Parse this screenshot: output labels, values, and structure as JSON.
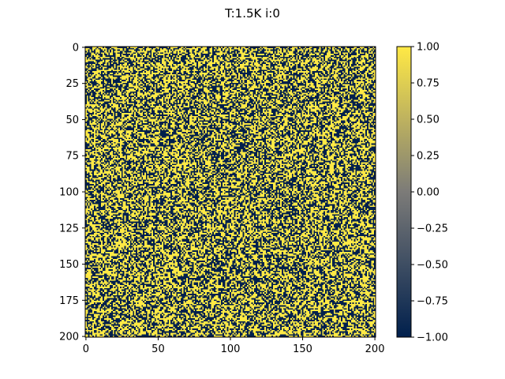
{
  "chart_data": [
    {
      "type": "heatmap",
      "title": "T:1.5K   i:0",
      "xlabel": "",
      "ylabel": "",
      "grid_size": 201,
      "xlim": [
        0,
        201
      ],
      "ylim": [
        201,
        0
      ],
      "xticks": [
        0,
        50,
        100,
        150,
        200
      ],
      "yticks": [
        0,
        25,
        50,
        75,
        100,
        125,
        150,
        175,
        200
      ],
      "xtick_labels": [
        "0",
        "50",
        "100",
        "150",
        "200"
      ],
      "ytick_labels": [
        "0",
        "25",
        "50",
        "75",
        "100",
        "125",
        "150",
        "175",
        "200"
      ],
      "values_domain": [
        -1,
        1
      ],
      "values_description": "random spins of -1 or +1, roughly equal proportion (initial state)",
      "spin_up_fraction": 0.5,
      "colormap": "cividis",
      "colormap_colors": [
        "#00204d",
        "#7c7b78",
        "#ffe945"
      ]
    },
    {
      "type": "colorbar",
      "range": [
        -1,
        1
      ],
      "ticks": [
        1.0,
        0.75,
        0.5,
        0.25,
        0.0,
        -0.25,
        -0.5,
        -0.75,
        -1.0
      ],
      "tick_labels": [
        "1.00",
        "0.75",
        "0.50",
        "0.25",
        "0.00",
        "−0.25",
        "−0.50",
        "−0.75",
        "−1.00"
      ]
    }
  ]
}
